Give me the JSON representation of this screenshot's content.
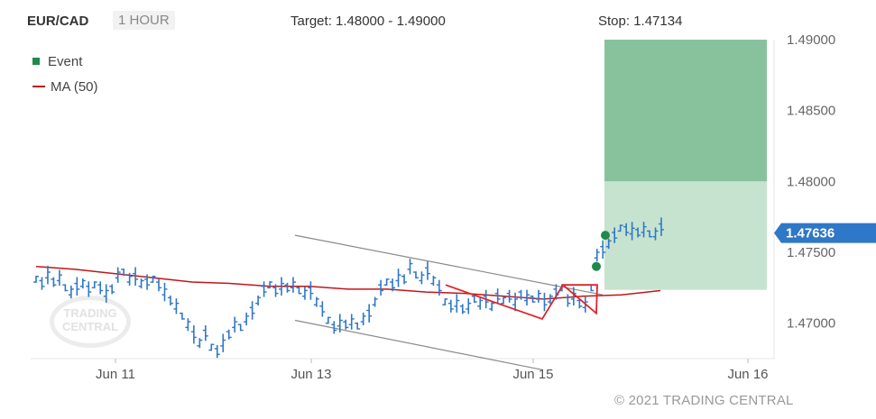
{
  "header": {
    "symbol": "EUR/CAD",
    "timeframe": "1 HOUR",
    "target": "Target: 1.48000 - 1.49000",
    "stop": "Stop: 1.47134"
  },
  "legend": {
    "event_label": "Event",
    "ma_label": "MA (50)"
  },
  "watermark": "TRADING CENTRAL",
  "copyright": "© 2021 TRADING CENTRAL",
  "colors": {
    "bars": "#2f77c7",
    "ma": "#c0161a",
    "pattern": "#e0222a",
    "channel": "#8a8a8a",
    "event": "#1f8a4c",
    "target_zone_dark": "#88c29d",
    "target_zone_light": "#c6e3cf",
    "price_tag": "#2f77c7"
  },
  "chart_data": {
    "type": "ohlc",
    "title": "EUR/CAD",
    "xlabel": "",
    "ylabel": "",
    "x_ticks": [
      "Jun 11",
      "Jun 13",
      "Jun 15",
      "Jun 16"
    ],
    "y_ticks": [
      "1.49000",
      "1.48500",
      "1.48000",
      "1.47500",
      "1.47000"
    ],
    "ylim": [
      1.4675,
      1.49
    ],
    "current_price": "1.47636",
    "target_range": [
      1.48,
      1.49
    ],
    "stop": 1.47134,
    "entry_zone": [
      1.47235,
      1.48
    ],
    "series_ohlc_midpoints": [
      1.4731,
      1.4728,
      1.4734,
      1.4729,
      1.4732,
      1.4725,
      1.4722,
      1.4726,
      1.4728,
      1.4724,
      1.4727,
      1.4725,
      1.4721,
      1.4724,
      1.4734,
      1.4736,
      1.4731,
      1.4733,
      1.4728,
      1.4729,
      1.4731,
      1.4727,
      1.4722,
      1.4716,
      1.4712,
      1.4705,
      1.4699,
      1.4692,
      1.4686,
      1.4693,
      1.4683,
      1.468,
      1.4686,
      1.4692,
      1.4699,
      1.4697,
      1.4703,
      1.4709,
      1.4716,
      1.4724,
      1.4727,
      1.4723,
      1.4726,
      1.4725,
      1.4727,
      1.4723,
      1.4721,
      1.4723,
      1.4715,
      1.471,
      1.4702,
      1.4697,
      1.47,
      1.4699,
      1.4701,
      1.4698,
      1.4703,
      1.4707,
      1.4715,
      1.4725,
      1.4729,
      1.4727,
      1.4732,
      1.4731,
      1.474,
      1.4734,
      1.4732,
      1.4737,
      1.473,
      1.4725,
      1.4715,
      1.4712,
      1.4714,
      1.471,
      1.4712,
      1.4717,
      1.4714,
      1.4717,
      1.4712,
      1.4719,
      1.4716,
      1.4719,
      1.4715,
      1.472,
      1.4718,
      1.4717,
      1.4719,
      1.4715,
      1.4717,
      1.4722,
      1.4725,
      1.4716,
      1.4719,
      1.4714,
      1.4713,
      1.4725,
      1.4748,
      1.4752,
      1.4756,
      1.4762,
      1.4767,
      1.4766,
      1.4765,
      1.4764,
      1.4766,
      1.4763,
      1.4763,
      1.4768
    ],
    "moving_average_50": {
      "name": "MA (50)",
      "values": [
        1.474,
        1.4738,
        1.4735,
        1.4732,
        1.4729,
        1.4728,
        1.4726,
        1.4726,
        1.4724,
        1.4724,
        1.4722,
        1.4721,
        1.4719,
        1.4717,
        1.4719,
        1.472,
        1.4723
      ]
    },
    "channel_lines": [
      {
        "from": [
          1.4762,
          "Jun 12"
        ],
        "to": [
          1.472,
          "Jun 15"
        ]
      },
      {
        "from": [
          1.4702,
          "Jun 12"
        ],
        "to": [
          1.4667,
          "Jun 15"
        ]
      }
    ],
    "events": [
      1.474,
      1.4762
    ]
  }
}
